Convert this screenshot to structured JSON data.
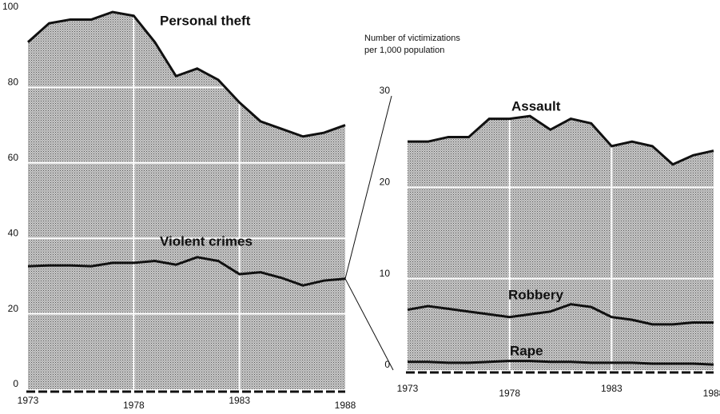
{
  "chart_data": [
    {
      "type": "area",
      "x": [
        1973,
        1974,
        1975,
        1976,
        1977,
        1978,
        1979,
        1980,
        1981,
        1982,
        1983,
        1984,
        1985,
        1986,
        1987,
        1988
      ],
      "xlim": [
        1973,
        1988
      ],
      "xticks": [
        1973,
        1978,
        1983,
        1988
      ],
      "ylim": [
        0,
        100
      ],
      "yticks": [
        0,
        20,
        40,
        60,
        80,
        100
      ],
      "grid": true,
      "series": [
        {
          "name": "Personal theft",
          "color": "#111111",
          "values": [
            92,
            97,
            98,
            98,
            100,
            99,
            92,
            83,
            85,
            82,
            76,
            71,
            69,
            67,
            68,
            70
          ]
        },
        {
          "name": "Violent crimes",
          "color": "#111111",
          "values": [
            32.6,
            32.8,
            32.8,
            32.6,
            33.5,
            33.5,
            34,
            33,
            35,
            34,
            30.5,
            31,
            29.5,
            27.5,
            28.8,
            29.3
          ]
        }
      ]
    },
    {
      "type": "area",
      "annotation": [
        "Number of victimizations",
        "per 1,000 population"
      ],
      "x": [
        1973,
        1974,
        1975,
        1976,
        1977,
        1978,
        1979,
        1980,
        1981,
        1982,
        1983,
        1984,
        1985,
        1986,
        1987,
        1988
      ],
      "xlim": [
        1973,
        1988
      ],
      "xticks": [
        1973,
        1978,
        1983,
        1988
      ],
      "ylim": [
        0,
        30
      ],
      "yticks": [
        0,
        10,
        20,
        30
      ],
      "grid": true,
      "series": [
        {
          "name": "Assault",
          "color": "#111111",
          "values": [
            25,
            25,
            25.5,
            25.5,
            27.5,
            27.5,
            27.8,
            26.3,
            27.5,
            27,
            24.5,
            25,
            24.5,
            22.5,
            23.5,
            24
          ]
        },
        {
          "name": "Robbery",
          "color": "#111111",
          "values": [
            6.6,
            7,
            6.7,
            6.4,
            6.1,
            5.8,
            6.1,
            6.4,
            7.2,
            6.9,
            5.8,
            5.5,
            5,
            5,
            5.2,
            5.2
          ]
        },
        {
          "name": "Rape",
          "color": "#111111",
          "values": [
            0.9,
            0.9,
            0.8,
            0.8,
            0.9,
            1,
            1,
            0.9,
            0.9,
            0.8,
            0.8,
            0.8,
            0.7,
            0.7,
            0.7,
            0.6
          ]
        }
      ]
    }
  ]
}
